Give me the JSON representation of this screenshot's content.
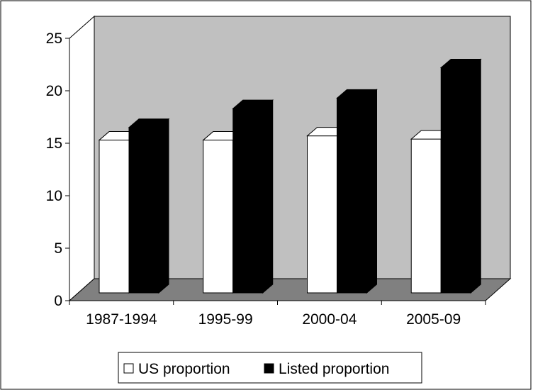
{
  "chart_data": {
    "type": "bar",
    "style": "3d-clustered-column",
    "categories": [
      "1987-1994",
      "1995-99",
      "2000-04",
      "2005-09"
    ],
    "series": [
      {
        "name": "US proportion",
        "values": [
          15.3,
          15.3,
          15.7,
          15.4
        ],
        "color": "#ffffff"
      },
      {
        "name": "Listed proportion",
        "values": [
          16.5,
          18.3,
          19.3,
          22.2
        ],
        "color": "#000000"
      }
    ],
    "yticks": [
      "0",
      "5",
      "10",
      "15",
      "20",
      "25"
    ],
    "ylim": [
      0,
      25
    ],
    "grid": false,
    "legend_position": "bottom",
    "wall_color": "#c0c0c0",
    "floor_color": "#808080"
  }
}
